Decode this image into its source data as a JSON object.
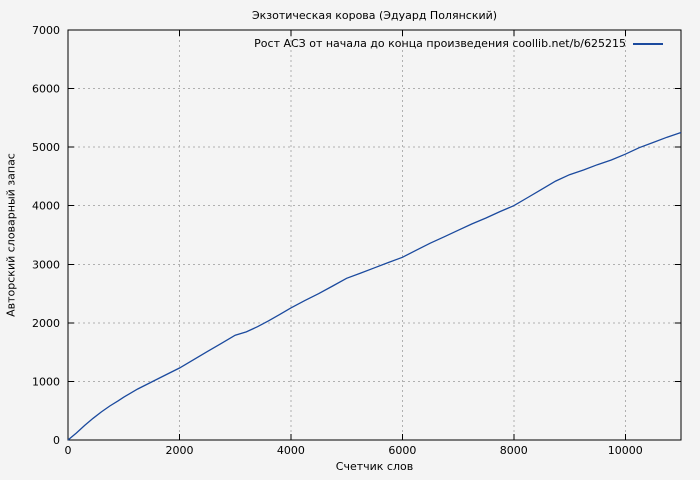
{
  "page": {
    "background": "#f4f4f4"
  },
  "chart_data": {
    "type": "line",
    "title": "Экзотическая корова (Эдуард Полянский)",
    "xlabel": "Счетчик слов",
    "ylabel": "Авторский словарный запас",
    "xlim": [
      0,
      11000
    ],
    "ylim": [
      0,
      7000
    ],
    "grid": true,
    "grid_style": "dashed",
    "legend_position": "top-right-inside",
    "xticks": [
      {
        "value": 0,
        "label": "0"
      },
      {
        "value": 2000,
        "label": "2000"
      },
      {
        "value": 4000,
        "label": "4000"
      },
      {
        "value": 6000,
        "label": "6000"
      },
      {
        "value": 8000,
        "label": "8000"
      },
      {
        "value": 10000,
        "label": "10000"
      }
    ],
    "yticks": [
      {
        "value": 0,
        "label": "0"
      },
      {
        "value": 1000,
        "label": "1000"
      },
      {
        "value": 2000,
        "label": "2000"
      },
      {
        "value": 3000,
        "label": "3000"
      },
      {
        "value": 4000,
        "label": "4000"
      },
      {
        "value": 5000,
        "label": "5000"
      },
      {
        "value": 6000,
        "label": "6000"
      },
      {
        "value": 7000,
        "label": "7000"
      }
    ],
    "colors": {
      "line": "#1b4a9e",
      "grid": "#b0b0b0",
      "frame": "#000000",
      "text": "#000000",
      "background": "#f4f4f4"
    },
    "series": [
      {
        "name": "Рост АСЗ от начала до конца произведения coollib.net/b/625215",
        "points": [
          [
            0,
            0
          ],
          [
            150,
            120
          ],
          [
            300,
            250
          ],
          [
            450,
            370
          ],
          [
            600,
            480
          ],
          [
            750,
            580
          ],
          [
            900,
            670
          ],
          [
            1000,
            730
          ],
          [
            1250,
            870
          ],
          [
            1500,
            990
          ],
          [
            1750,
            1110
          ],
          [
            2000,
            1230
          ],
          [
            2250,
            1370
          ],
          [
            2500,
            1510
          ],
          [
            2750,
            1650
          ],
          [
            3000,
            1790
          ],
          [
            3200,
            1845
          ],
          [
            3400,
            1935
          ],
          [
            3600,
            2035
          ],
          [
            3800,
            2145
          ],
          [
            4000,
            2255
          ],
          [
            4250,
            2380
          ],
          [
            4500,
            2500
          ],
          [
            4750,
            2630
          ],
          [
            5000,
            2760
          ],
          [
            5250,
            2850
          ],
          [
            5500,
            2940
          ],
          [
            5750,
            3030
          ],
          [
            6000,
            3120
          ],
          [
            6250,
            3240
          ],
          [
            6500,
            3360
          ],
          [
            6750,
            3470
          ],
          [
            7000,
            3580
          ],
          [
            7250,
            3690
          ],
          [
            7500,
            3790
          ],
          [
            7750,
            3900
          ],
          [
            8000,
            4000
          ],
          [
            8250,
            4140
          ],
          [
            8500,
            4280
          ],
          [
            8750,
            4420
          ],
          [
            9000,
            4530
          ],
          [
            9250,
            4610
          ],
          [
            9500,
            4700
          ],
          [
            9750,
            4780
          ],
          [
            10000,
            4880
          ],
          [
            10250,
            4990
          ],
          [
            10500,
            5080
          ],
          [
            10750,
            5170
          ],
          [
            11000,
            5250
          ]
        ]
      }
    ]
  }
}
